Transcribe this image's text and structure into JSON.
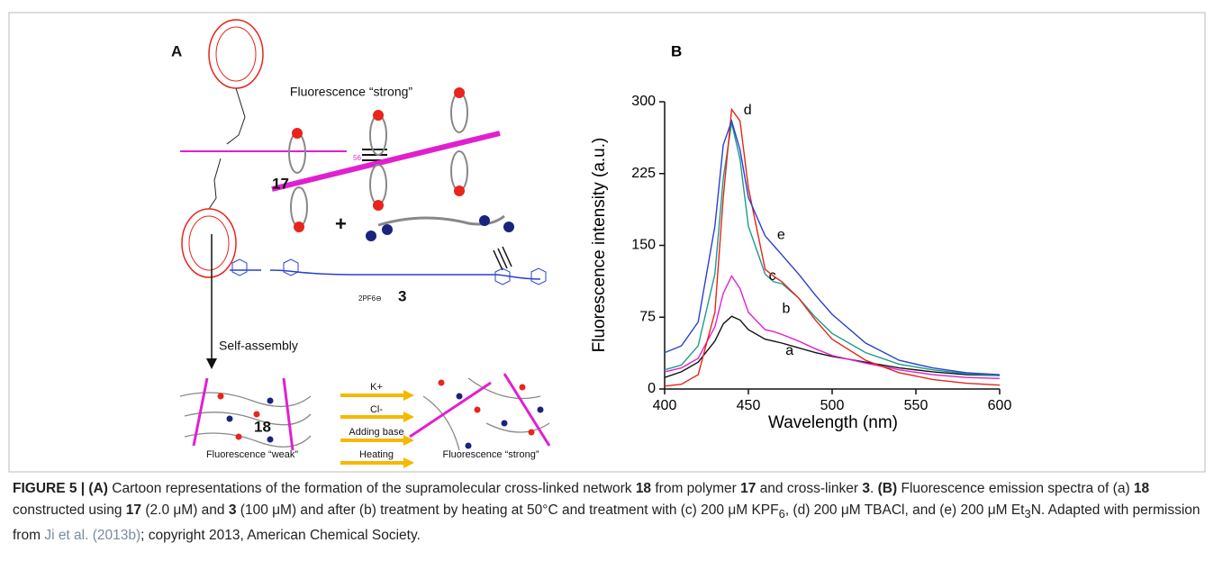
{
  "panel_a": {
    "label": "A",
    "top_caption": "Fluorescence “strong”",
    "polymer_label": "17",
    "polymer_repeat": "56",
    "plus": "+",
    "linker_label": "3",
    "linker_salt": "2PF6⊖",
    "arrow_label": "Self-assembly",
    "network_label": "18",
    "weak_caption": "Fluorescence “weak”",
    "strong_caption": "Fluorescence “strong”",
    "stimuli": [
      "K+",
      "Cl-",
      "Adding base",
      "Heating"
    ]
  },
  "chart_data": {
    "type": "line",
    "panel_label": "B",
    "xlabel": "Wavelength (nm)",
    "ylabel": "Fluorescence intensity (a.u.)",
    "x": [
      400,
      410,
      420,
      430,
      435,
      440,
      445,
      450,
      460,
      465,
      470,
      480,
      490,
      500,
      520,
      540,
      560,
      580,
      600
    ],
    "series": [
      {
        "name": "a",
        "color": "#111111",
        "values": [
          12,
          18,
          28,
          50,
          68,
          76,
          72,
          62,
          52,
          50,
          48,
          43,
          38,
          34,
          28,
          22,
          18,
          15,
          14
        ]
      },
      {
        "name": "b",
        "color": "#e020d0",
        "values": [
          18,
          22,
          32,
          65,
          100,
          118,
          105,
          80,
          62,
          60,
          57,
          50,
          42,
          35,
          27,
          20,
          15,
          12,
          11
        ]
      },
      {
        "name": "c",
        "color": "#1a9c8a",
        "values": [
          20,
          25,
          45,
          120,
          220,
          278,
          240,
          170,
          120,
          112,
          110,
          95,
          75,
          58,
          38,
          26,
          20,
          16,
          14
        ]
      },
      {
        "name": "d",
        "color": "#e8241c",
        "values": [
          3,
          5,
          15,
          80,
          200,
          292,
          280,
          210,
          125,
          118,
          112,
          95,
          72,
          52,
          30,
          17,
          10,
          6,
          4
        ]
      },
      {
        "name": "e",
        "color": "#2a3fd0",
        "values": [
          38,
          45,
          70,
          170,
          255,
          280,
          250,
          200,
          160,
          150,
          140,
          120,
          98,
          78,
          48,
          30,
          22,
          17,
          15
        ]
      }
    ],
    "xlim": [
      400,
      600
    ],
    "ylim": [
      0,
      300
    ],
    "xticks": [
      400,
      450,
      500,
      550,
      600
    ],
    "yticks": [
      0,
      75,
      150,
      225,
      300
    ]
  },
  "caption": [
    {
      "text": "FIGURE 5 | (A)",
      "style": "bold"
    },
    {
      "text": " Cartoon representations of the formation of the supramolecular cross-linked network "
    },
    {
      "text": "18",
      "style": "bold"
    },
    {
      "text": " from polymer "
    },
    {
      "text": "17",
      "style": "bold"
    },
    {
      "text": " and cross-linker "
    },
    {
      "text": "3",
      "style": "bold"
    },
    {
      "text": ". "
    },
    {
      "text": "(B)",
      "style": "bold"
    },
    {
      "text": " Fluorescence emission spectra of (a) "
    },
    {
      "text": "18",
      "style": "bold"
    },
    {
      "text": " constructed using "
    },
    {
      "text": "17",
      "style": "bold"
    },
    {
      "text": " (2.0 μM) and "
    },
    {
      "text": "3",
      "style": "bold"
    },
    {
      "text": " (100 μM) and after (b) treatment by heating at 50°C and treatment with (c) 200 μM KPF"
    },
    {
      "text": "6",
      "style": "sub"
    },
    {
      "text": ", (d) 200 μM TBACl, and (e) 200 μM Et"
    },
    {
      "text": "3",
      "style": "sub"
    },
    {
      "text": "N. Adapted with permission from "
    },
    {
      "text": "Ji et al. (2013b)",
      "style": "link"
    },
    {
      "text": "; copyright 2013, American Chemical Society."
    }
  ]
}
